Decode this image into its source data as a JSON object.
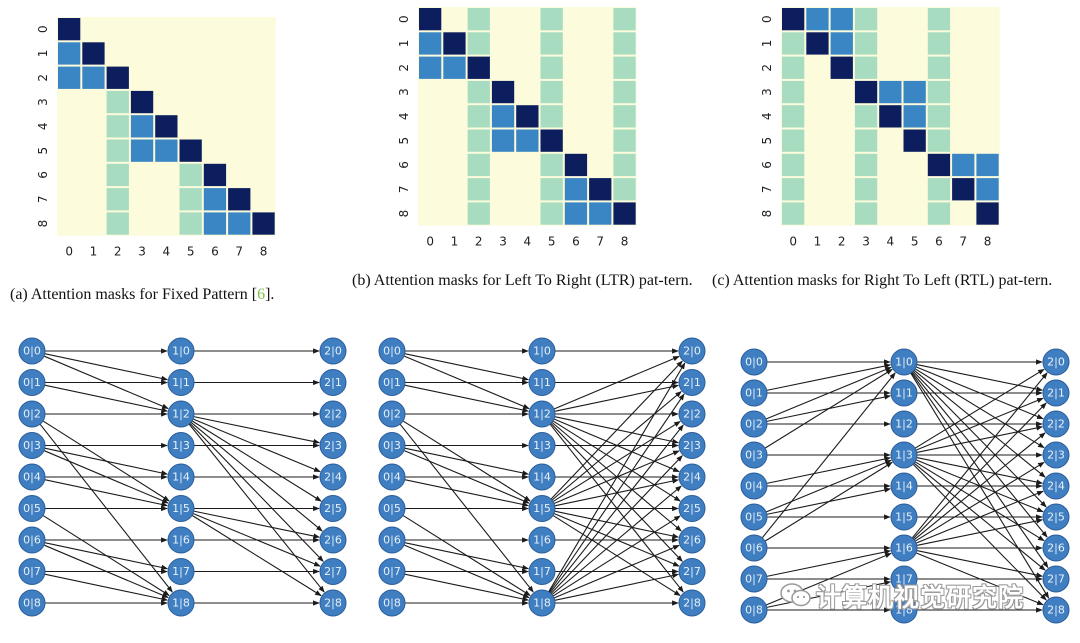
{
  "captions": {
    "a": {
      "text": "(a) Attention masks for Fixed Pattern [",
      "ref": "6",
      "suffix": "]."
    },
    "b": {
      "text": "(b) Attention masks for Left To Right (LTR) pat-tern."
    },
    "c": {
      "text": "(c) Attention masks for Right To Left (RTL) pat-tern."
    }
  },
  "watermark": {
    "text": "计算机视觉研究院",
    "icon": "wechat-icon"
  },
  "colors": {
    "background": "#fcfbdc",
    "light": "#a8dcc0",
    "mid": "#3a85c4",
    "dark": "#0c1e5e",
    "node_fill": "#3f7fc1",
    "node_stroke": "#2a5c9a",
    "node_text": "#e8f0fa",
    "edge": "#1b1b1b"
  },
  "chart_data": [
    {
      "type": "heatmap",
      "name": "fixed",
      "x_tick_labels": [
        "0",
        "1",
        "2",
        "3",
        "4",
        "5",
        "6",
        "7",
        "8"
      ],
      "y_tick_labels": [
        "0",
        "1",
        "2",
        "3",
        "4",
        "5",
        "6",
        "7",
        "8"
      ],
      "matrix": [
        [
          3,
          0,
          0,
          0,
          0,
          0,
          0,
          0,
          0
        ],
        [
          2,
          3,
          0,
          0,
          0,
          0,
          0,
          0,
          0
        ],
        [
          2,
          2,
          3,
          0,
          0,
          0,
          0,
          0,
          0
        ],
        [
          0,
          0,
          1,
          3,
          0,
          0,
          0,
          0,
          0
        ],
        [
          0,
          0,
          1,
          2,
          3,
          0,
          0,
          0,
          0
        ],
        [
          0,
          0,
          1,
          2,
          2,
          3,
          0,
          0,
          0
        ],
        [
          0,
          0,
          1,
          0,
          0,
          1,
          3,
          0,
          0
        ],
        [
          0,
          0,
          1,
          0,
          0,
          1,
          2,
          3,
          0
        ],
        [
          0,
          0,
          1,
          0,
          0,
          1,
          2,
          2,
          3
        ]
      ]
    },
    {
      "type": "heatmap",
      "name": "ltr",
      "x_tick_labels": [
        "0",
        "1",
        "2",
        "3",
        "4",
        "5",
        "6",
        "7",
        "8"
      ],
      "y_tick_labels": [
        "0",
        "1",
        "2",
        "3",
        "4",
        "5",
        "6",
        "7",
        "8"
      ],
      "matrix": [
        [
          3,
          0,
          1,
          0,
          0,
          1,
          0,
          0,
          1
        ],
        [
          2,
          3,
          1,
          0,
          0,
          1,
          0,
          0,
          1
        ],
        [
          2,
          2,
          3,
          0,
          0,
          1,
          0,
          0,
          1
        ],
        [
          0,
          0,
          1,
          3,
          0,
          1,
          0,
          0,
          1
        ],
        [
          0,
          0,
          1,
          2,
          3,
          1,
          0,
          0,
          1
        ],
        [
          0,
          0,
          1,
          2,
          2,
          3,
          0,
          0,
          1
        ],
        [
          0,
          0,
          1,
          0,
          0,
          1,
          3,
          0,
          1
        ],
        [
          0,
          0,
          1,
          0,
          0,
          1,
          2,
          3,
          1
        ],
        [
          0,
          0,
          1,
          0,
          0,
          1,
          2,
          2,
          3
        ]
      ]
    },
    {
      "type": "heatmap",
      "name": "rtl",
      "x_tick_labels": [
        "0",
        "1",
        "2",
        "3",
        "4",
        "5",
        "6",
        "7",
        "8"
      ],
      "y_tick_labels": [
        "0",
        "1",
        "2",
        "3",
        "4",
        "5",
        "6",
        "7",
        "8"
      ],
      "matrix": [
        [
          3,
          2,
          2,
          1,
          0,
          0,
          1,
          0,
          0
        ],
        [
          1,
          3,
          2,
          1,
          0,
          0,
          1,
          0,
          0
        ],
        [
          1,
          0,
          3,
          1,
          0,
          0,
          1,
          0,
          0
        ],
        [
          1,
          0,
          0,
          3,
          2,
          2,
          1,
          0,
          0
        ],
        [
          1,
          0,
          0,
          1,
          3,
          2,
          1,
          0,
          0
        ],
        [
          1,
          0,
          0,
          1,
          0,
          3,
          1,
          0,
          0
        ],
        [
          1,
          0,
          0,
          1,
          0,
          0,
          3,
          2,
          2
        ],
        [
          1,
          0,
          0,
          1,
          0,
          0,
          1,
          3,
          2
        ],
        [
          1,
          0,
          0,
          1,
          0,
          0,
          1,
          0,
          3
        ]
      ]
    }
  ],
  "graphs": [
    {
      "name": "fixed-graph",
      "layers": [
        [
          "0|0",
          "0|1",
          "0|2",
          "0|3",
          "0|4",
          "0|5",
          "0|6",
          "0|7",
          "0|8"
        ],
        [
          "1|0",
          "1|1",
          "1|2",
          "1|3",
          "1|4",
          "1|5",
          "1|6",
          "1|7",
          "1|8"
        ],
        [
          "2|0",
          "2|1",
          "2|2",
          "2|3",
          "2|4",
          "2|5",
          "2|6",
          "2|7",
          "2|8"
        ]
      ],
      "edges_layer1": [
        [
          0,
          0
        ],
        [
          0,
          1
        ],
        [
          0,
          2
        ],
        [
          1,
          1
        ],
        [
          1,
          2
        ],
        [
          2,
          2
        ],
        [
          3,
          3
        ],
        [
          3,
          4
        ],
        [
          3,
          5
        ],
        [
          4,
          4
        ],
        [
          4,
          5
        ],
        [
          5,
          5
        ],
        [
          6,
          6
        ],
        [
          6,
          7
        ],
        [
          6,
          8
        ],
        [
          7,
          7
        ],
        [
          7,
          8
        ],
        [
          8,
          8
        ],
        [
          2,
          5
        ],
        [
          2,
          8
        ],
        [
          5,
          8
        ]
      ],
      "edges_layer2": [
        [
          0,
          0
        ],
        [
          1,
          1
        ],
        [
          2,
          2
        ],
        [
          3,
          3
        ],
        [
          4,
          4
        ],
        [
          5,
          5
        ],
        [
          6,
          6
        ],
        [
          7,
          7
        ],
        [
          8,
          8
        ],
        [
          2,
          3
        ],
        [
          2,
          4
        ],
        [
          2,
          5
        ],
        [
          2,
          6
        ],
        [
          2,
          7
        ],
        [
          2,
          8
        ],
        [
          5,
          6
        ],
        [
          5,
          7
        ],
        [
          5,
          8
        ]
      ]
    },
    {
      "name": "ltr-graph",
      "layers": [
        [
          "0|0",
          "0|1",
          "0|2",
          "0|3",
          "0|4",
          "0|5",
          "0|6",
          "0|7",
          "0|8"
        ],
        [
          "1|0",
          "1|1",
          "1|2",
          "1|3",
          "1|4",
          "1|5",
          "1|6",
          "1|7",
          "1|8"
        ],
        [
          "2|0",
          "2|1",
          "2|2",
          "2|3",
          "2|4",
          "2|5",
          "2|6",
          "2|7",
          "2|8"
        ]
      ],
      "edges_layer1": [
        [
          0,
          0
        ],
        [
          0,
          1
        ],
        [
          0,
          2
        ],
        [
          1,
          1
        ],
        [
          1,
          2
        ],
        [
          2,
          2
        ],
        [
          3,
          3
        ],
        [
          3,
          4
        ],
        [
          3,
          5
        ],
        [
          4,
          4
        ],
        [
          4,
          5
        ],
        [
          5,
          5
        ],
        [
          6,
          6
        ],
        [
          6,
          7
        ],
        [
          6,
          8
        ],
        [
          7,
          7
        ],
        [
          7,
          8
        ],
        [
          8,
          8
        ],
        [
          2,
          5
        ],
        [
          2,
          8
        ],
        [
          5,
          8
        ]
      ],
      "edges_layer2": [
        [
          0,
          0
        ],
        [
          1,
          1
        ],
        [
          2,
          2
        ],
        [
          3,
          3
        ],
        [
          4,
          4
        ],
        [
          5,
          5
        ],
        [
          6,
          6
        ],
        [
          7,
          7
        ],
        [
          8,
          8
        ],
        [
          2,
          0
        ],
        [
          2,
          1
        ],
        [
          2,
          3
        ],
        [
          2,
          4
        ],
        [
          2,
          5
        ],
        [
          2,
          6
        ],
        [
          2,
          7
        ],
        [
          2,
          8
        ],
        [
          5,
          0
        ],
        [
          5,
          1
        ],
        [
          5,
          2
        ],
        [
          5,
          3
        ],
        [
          5,
          4
        ],
        [
          5,
          6
        ],
        [
          5,
          7
        ],
        [
          5,
          8
        ],
        [
          8,
          0
        ],
        [
          8,
          1
        ],
        [
          8,
          2
        ],
        [
          8,
          3
        ],
        [
          8,
          4
        ],
        [
          8,
          5
        ],
        [
          8,
          6
        ],
        [
          8,
          7
        ]
      ]
    },
    {
      "name": "rtl-graph",
      "layers": [
        [
          "0|0",
          "0|1",
          "0|2",
          "0|3",
          "0|4",
          "0|5",
          "0|6",
          "0|7",
          "0|8"
        ],
        [
          "1|0",
          "1|1",
          "1|2",
          "1|3",
          "1|4",
          "1|5",
          "1|6",
          "1|7",
          "1|8"
        ],
        [
          "2|0",
          "2|1",
          "2|2",
          "2|3",
          "2|4",
          "2|5",
          "2|6",
          "2|7",
          "2|8"
        ]
      ],
      "edges_layer1": [
        [
          0,
          0
        ],
        [
          1,
          0
        ],
        [
          2,
          0
        ],
        [
          1,
          1
        ],
        [
          2,
          1
        ],
        [
          2,
          2
        ],
        [
          3,
          3
        ],
        [
          4,
          3
        ],
        [
          5,
          3
        ],
        [
          4,
          4
        ],
        [
          5,
          4
        ],
        [
          5,
          5
        ],
        [
          6,
          6
        ],
        [
          7,
          6
        ],
        [
          8,
          6
        ],
        [
          7,
          7
        ],
        [
          8,
          7
        ],
        [
          8,
          8
        ],
        [
          3,
          0
        ],
        [
          6,
          0
        ],
        [
          6,
          3
        ]
      ],
      "edges_layer2": [
        [
          0,
          0
        ],
        [
          1,
          1
        ],
        [
          2,
          2
        ],
        [
          3,
          3
        ],
        [
          4,
          4
        ],
        [
          5,
          5
        ],
        [
          6,
          6
        ],
        [
          7,
          7
        ],
        [
          8,
          8
        ],
        [
          0,
          1
        ],
        [
          0,
          2
        ],
        [
          0,
          3
        ],
        [
          0,
          4
        ],
        [
          0,
          5
        ],
        [
          0,
          6
        ],
        [
          0,
          7
        ],
        [
          0,
          8
        ],
        [
          3,
          0
        ],
        [
          3,
          1
        ],
        [
          3,
          2
        ],
        [
          3,
          4
        ],
        [
          3,
          5
        ],
        [
          3,
          6
        ],
        [
          3,
          7
        ],
        [
          3,
          8
        ],
        [
          6,
          0
        ],
        [
          6,
          1
        ],
        [
          6,
          2
        ],
        [
          6,
          3
        ],
        [
          6,
          4
        ],
        [
          6,
          5
        ],
        [
          6,
          7
        ],
        [
          6,
          8
        ]
      ]
    }
  ]
}
